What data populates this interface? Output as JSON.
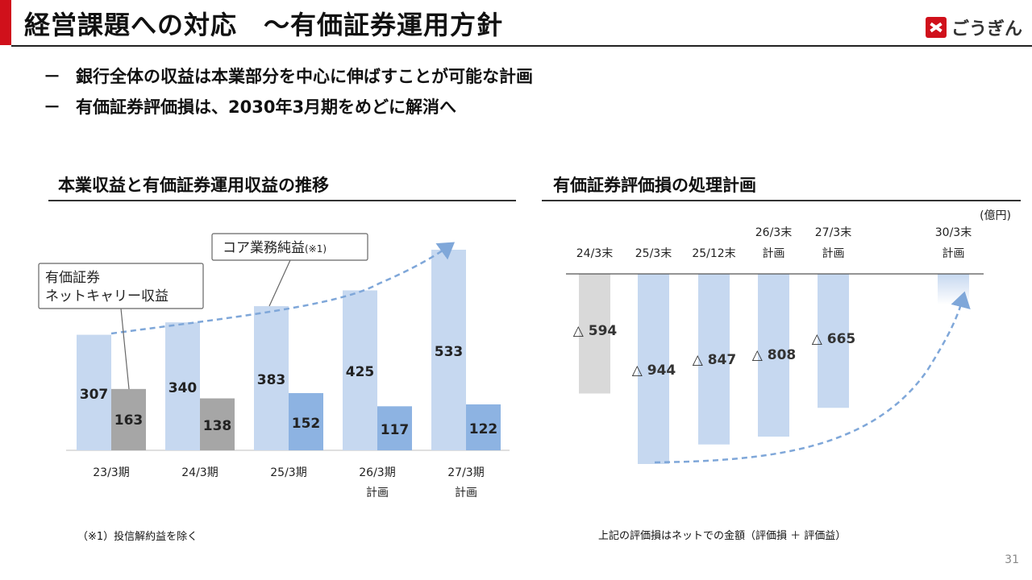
{
  "header": {
    "title": "経営課題への対応　～有価証券運用方針",
    "logo_text": "ごうぎん"
  },
  "bullets": [
    {
      "dash": "－",
      "text": "銀行全体の収益は本業部分を中心に伸ばすことが可能な計画"
    },
    {
      "dash": "－",
      "text": "有価証券評価損は、2030年3月期をめどに解消へ"
    }
  ],
  "left_section": {
    "title": "本業収益と有価証券運用収益の推移",
    "note": "（※1）投信解約益を除く"
  },
  "right_section": {
    "title": "有価証券評価損の処理計画",
    "note": "上記の評価損はネットでの金額（評価損 ＋ 評価益）"
  },
  "page_number": "31",
  "colors": {
    "accent_red": "#d0101b",
    "light_blue": "#c6d8f0",
    "mid_blue": "#8db3e2",
    "gray": "#a6a6a6",
    "light_gray": "#d9d9d9",
    "arrow_blue": "#7fa7d9"
  },
  "chart_data": [
    {
      "type": "bar",
      "title": "本業収益と有価証券運用収益の推移",
      "categories": [
        {
          "line1": "23/3期",
          "line2": ""
        },
        {
          "line1": "24/3期",
          "line2": ""
        },
        {
          "line1": "25/3期",
          "line2": ""
        },
        {
          "line1": "26/3期",
          "line2": "計画"
        },
        {
          "line1": "27/3期",
          "line2": "計画"
        }
      ],
      "series": [
        {
          "name": "コア業務純益",
          "footnote_mark": "(※1)",
          "values": [
            307,
            340,
            383,
            425,
            533
          ]
        },
        {
          "name": "有価証券ネットキャリー収益",
          "name_lines": [
            "有価証券",
            "ネットキャリー収益"
          ],
          "values": [
            163,
            138,
            152,
            117,
            122
          ]
        }
      ],
      "ylim": [
        0,
        560
      ]
    },
    {
      "type": "bar",
      "title": "有価証券評価損の処理計画",
      "unit_label": "(億円)",
      "categories": [
        {
          "line1": "24/3末",
          "line2": ""
        },
        {
          "line1": "25/3末",
          "line2": ""
        },
        {
          "line1": "25/12末",
          "line2": ""
        },
        {
          "line1": "26/3末",
          "line2": "計画"
        },
        {
          "line1": "27/3末",
          "line2": "計画"
        },
        {
          "line1": "30/3末",
          "line2": "計画"
        }
      ],
      "values": [
        -594,
        -944,
        -847,
        -808,
        -665,
        0
      ],
      "value_labels": [
        "△ 594",
        "△ 944",
        "△ 847",
        "△ 808",
        "△ 665",
        ""
      ],
      "ylim": [
        -1000,
        0
      ]
    }
  ]
}
